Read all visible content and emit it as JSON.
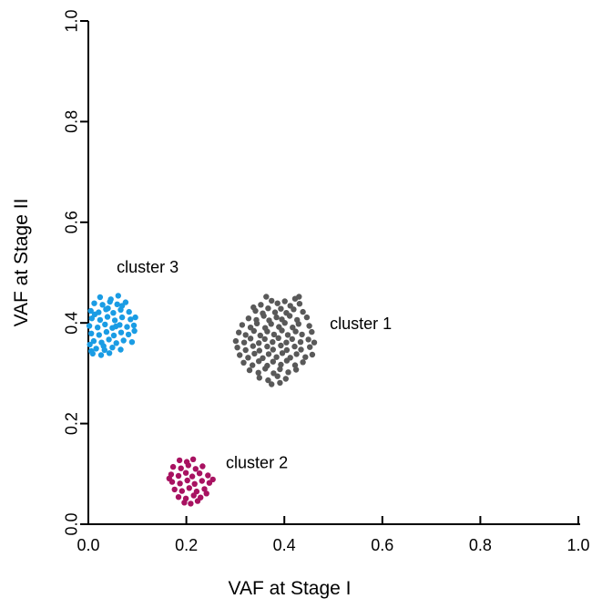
{
  "figure": {
    "background": "#ffffff",
    "axis_color": "#000000",
    "text_color": "#000000"
  },
  "chart_data": {
    "type": "scatter",
    "title": "",
    "xlabel": "VAF at Stage I",
    "ylabel": "VAF at Stage II",
    "xlim": [
      0.0,
      1.0
    ],
    "ylim": [
      0.0,
      1.0
    ],
    "grid": false,
    "legend": "none (inline annotations)",
    "point_radius": 3.2,
    "x_ticks": [
      0.0,
      0.2,
      0.4,
      0.6,
      0.8,
      1.0
    ],
    "y_ticks": [
      0.0,
      0.2,
      0.4,
      0.6,
      0.8,
      1.0
    ],
    "x_tick_labels": [
      "0.0",
      "0.2",
      "0.4",
      "0.6",
      "0.8",
      "1.0"
    ],
    "y_tick_labels": [
      "0.0",
      "0.2",
      "0.4",
      "0.6",
      "0.8",
      "1.0"
    ],
    "annotations": [
      {
        "text": "cluster 1",
        "x": 0.556,
        "y": 0.399,
        "color": "#000000"
      },
      {
        "text": "cluster 2",
        "x": 0.344,
        "y": 0.123,
        "color": "#000000"
      },
      {
        "text": "cluster 3",
        "x": 0.121,
        "y": 0.511,
        "color": "#000000"
      }
    ],
    "series": [
      {
        "name": "cluster 1",
        "color": "#595959",
        "center": [
          0.38,
          0.35
        ],
        "points": [
          [
            0.352,
            0.436
          ],
          [
            0.374,
            0.444
          ],
          [
            0.386,
            0.439
          ],
          [
            0.401,
            0.443
          ],
          [
            0.412,
            0.434
          ],
          [
            0.431,
            0.438
          ],
          [
            0.363,
            0.452
          ],
          [
            0.422,
            0.448
          ],
          [
            0.337,
            0.431
          ],
          [
            0.43,
            0.452
          ],
          [
            0.341,
            0.424
          ],
          [
            0.356,
            0.419
          ],
          [
            0.367,
            0.429
          ],
          [
            0.381,
            0.421
          ],
          [
            0.393,
            0.428
          ],
          [
            0.404,
            0.42
          ],
          [
            0.419,
            0.427
          ],
          [
            0.438,
            0.422
          ],
          [
            0.327,
            0.409
          ],
          [
            0.343,
            0.406
          ],
          [
            0.358,
            0.414
          ],
          [
            0.369,
            0.405
          ],
          [
            0.384,
            0.411
          ],
          [
            0.395,
            0.407
          ],
          [
            0.411,
            0.414
          ],
          [
            0.426,
            0.406
          ],
          [
            0.446,
            0.411
          ],
          [
            0.314,
            0.396
          ],
          [
            0.331,
            0.391
          ],
          [
            0.344,
            0.399
          ],
          [
            0.361,
            0.39
          ],
          [
            0.373,
            0.398
          ],
          [
            0.389,
            0.392
          ],
          [
            0.401,
            0.4
          ],
          [
            0.417,
            0.391
          ],
          [
            0.429,
            0.398
          ],
          [
            0.451,
            0.394
          ],
          [
            0.307,
            0.381
          ],
          [
            0.321,
            0.376
          ],
          [
            0.338,
            0.384
          ],
          [
            0.351,
            0.375
          ],
          [
            0.365,
            0.383
          ],
          [
            0.379,
            0.377
          ],
          [
            0.395,
            0.385
          ],
          [
            0.407,
            0.376
          ],
          [
            0.423,
            0.383
          ],
          [
            0.436,
            0.377
          ],
          [
            0.456,
            0.382
          ],
          [
            0.301,
            0.364
          ],
          [
            0.318,
            0.361
          ],
          [
            0.331,
            0.369
          ],
          [
            0.348,
            0.36
          ],
          [
            0.36,
            0.368
          ],
          [
            0.376,
            0.362
          ],
          [
            0.388,
            0.37
          ],
          [
            0.404,
            0.361
          ],
          [
            0.416,
            0.368
          ],
          [
            0.433,
            0.362
          ],
          [
            0.449,
            0.367
          ],
          [
            0.461,
            0.361
          ],
          [
            0.304,
            0.351
          ],
          [
            0.321,
            0.346
          ],
          [
            0.336,
            0.354
          ],
          [
            0.349,
            0.345
          ],
          [
            0.365,
            0.353
          ],
          [
            0.377,
            0.347
          ],
          [
            0.393,
            0.355
          ],
          [
            0.405,
            0.346
          ],
          [
            0.421,
            0.353
          ],
          [
            0.434,
            0.347
          ],
          [
            0.452,
            0.352
          ],
          [
            0.309,
            0.336
          ],
          [
            0.326,
            0.331
          ],
          [
            0.339,
            0.339
          ],
          [
            0.356,
            0.33
          ],
          [
            0.368,
            0.338
          ],
          [
            0.384,
            0.332
          ],
          [
            0.396,
            0.34
          ],
          [
            0.412,
            0.331
          ],
          [
            0.425,
            0.338
          ],
          [
            0.443,
            0.332
          ],
          [
            0.457,
            0.337
          ],
          [
            0.317,
            0.321
          ],
          [
            0.335,
            0.316
          ],
          [
            0.348,
            0.324
          ],
          [
            0.365,
            0.315
          ],
          [
            0.377,
            0.323
          ],
          [
            0.393,
            0.317
          ],
          [
            0.405,
            0.325
          ],
          [
            0.422,
            0.316
          ],
          [
            0.438,
            0.322
          ],
          [
            0.329,
            0.306
          ],
          [
            0.347,
            0.301
          ],
          [
            0.361,
            0.309
          ],
          [
            0.378,
            0.3
          ],
          [
            0.391,
            0.308
          ],
          [
            0.408,
            0.302
          ],
          [
            0.424,
            0.307
          ],
          [
            0.349,
            0.291
          ],
          [
            0.367,
            0.286
          ],
          [
            0.386,
            0.294
          ],
          [
            0.403,
            0.289
          ],
          [
            0.374,
            0.278
          ],
          [
            0.391,
            0.281
          ]
        ]
      },
      {
        "name": "cluster 2",
        "color": "#A81261",
        "center": [
          0.205,
          0.085
        ],
        "points": [
          [
            0.186,
            0.127
          ],
          [
            0.201,
            0.124
          ],
          [
            0.214,
            0.129
          ],
          [
            0.173,
            0.114
          ],
          [
            0.189,
            0.111
          ],
          [
            0.204,
            0.117
          ],
          [
            0.219,
            0.11
          ],
          [
            0.233,
            0.115
          ],
          [
            0.169,
            0.099
          ],
          [
            0.184,
            0.096
          ],
          [
            0.199,
            0.102
          ],
          [
            0.212,
            0.095
          ],
          [
            0.227,
            0.101
          ],
          [
            0.244,
            0.097
          ],
          [
            0.171,
            0.084
          ],
          [
            0.187,
            0.081
          ],
          [
            0.202,
            0.087
          ],
          [
            0.217,
            0.08
          ],
          [
            0.232,
            0.086
          ],
          [
            0.247,
            0.082
          ],
          [
            0.254,
            0.089
          ],
          [
            0.165,
            0.091
          ],
          [
            0.176,
            0.069
          ],
          [
            0.191,
            0.066
          ],
          [
            0.206,
            0.072
          ],
          [
            0.221,
            0.065
          ],
          [
            0.237,
            0.07
          ],
          [
            0.241,
            0.061
          ],
          [
            0.184,
            0.054
          ],
          [
            0.199,
            0.051
          ],
          [
            0.215,
            0.057
          ],
          [
            0.229,
            0.053
          ],
          [
            0.196,
            0.043
          ],
          [
            0.209,
            0.041
          ],
          [
            0.223,
            0.046
          ]
        ]
      },
      {
        "name": "cluster 3",
        "color": "#1A9CE4",
        "center": [
          0.042,
          0.4
        ],
        "points": [
          [
            0.024,
            0.451
          ],
          [
            0.046,
            0.447
          ],
          [
            0.061,
            0.454
          ],
          [
            0.012,
            0.439
          ],
          [
            0.029,
            0.436
          ],
          [
            0.044,
            0.442
          ],
          [
            0.059,
            0.437
          ],
          [
            0.076,
            0.441
          ],
          [
            0.04,
            0.429
          ],
          [
            0.069,
            0.434
          ],
          [
            0.005,
            0.424
          ],
          [
            0.021,
            0.421
          ],
          [
            0.036,
            0.427
          ],
          [
            0.051,
            0.42
          ],
          [
            0.066,
            0.426
          ],
          [
            0.083,
            0.422
          ],
          [
            0.013,
            0.417
          ],
          [
            0.007,
            0.409
          ],
          [
            0.024,
            0.406
          ],
          [
            0.039,
            0.412
          ],
          [
            0.054,
            0.405
          ],
          [
            0.069,
            0.411
          ],
          [
            0.086,
            0.407
          ],
          [
            0.096,
            0.411
          ],
          [
            0.002,
            0.394
          ],
          [
            0.019,
            0.391
          ],
          [
            0.034,
            0.397
          ],
          [
            0.049,
            0.39
          ],
          [
            0.064,
            0.396
          ],
          [
            0.079,
            0.392
          ],
          [
            0.093,
            0.395
          ],
          [
            0.056,
            0.393
          ],
          [
            0.006,
            0.379
          ],
          [
            0.022,
            0.376
          ],
          [
            0.037,
            0.382
          ],
          [
            0.052,
            0.375
          ],
          [
            0.067,
            0.381
          ],
          [
            0.082,
            0.377
          ],
          [
            0.094,
            0.384
          ],
          [
            0.011,
            0.364
          ],
          [
            0.027,
            0.361
          ],
          [
            0.042,
            0.367
          ],
          [
            0.057,
            0.36
          ],
          [
            0.072,
            0.365
          ],
          [
            0.089,
            0.362
          ],
          [
            0.003,
            0.357
          ],
          [
            0.016,
            0.349
          ],
          [
            0.033,
            0.346
          ],
          [
            0.049,
            0.351
          ],
          [
            0.066,
            0.347
          ],
          [
            0.031,
            0.354
          ],
          [
            0.009,
            0.339
          ],
          [
            0.026,
            0.336
          ],
          [
            0.043,
            0.34
          ],
          [
            0.006,
            0.344
          ]
        ]
      }
    ]
  }
}
